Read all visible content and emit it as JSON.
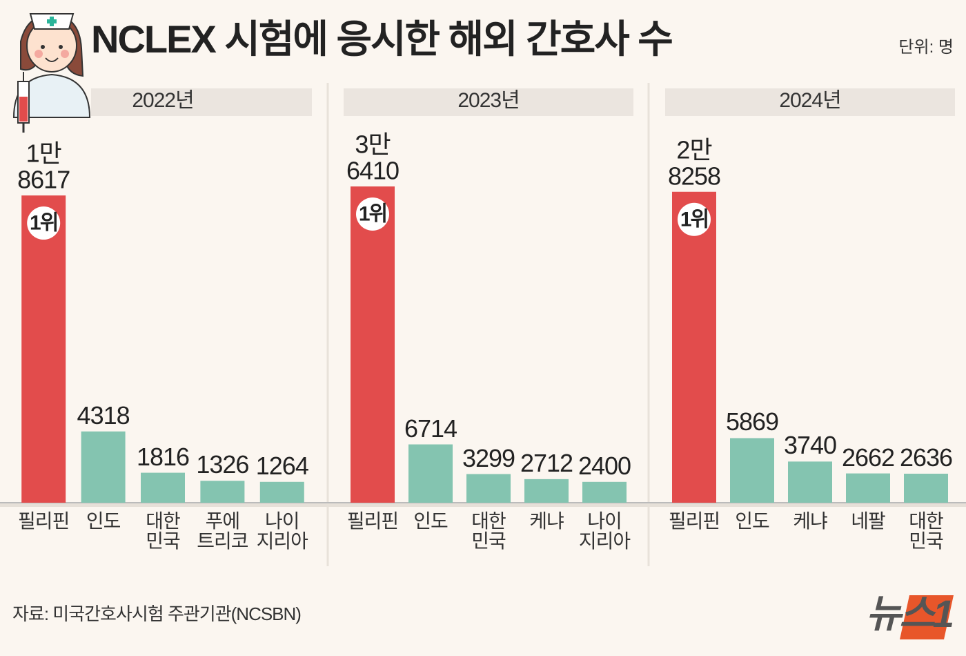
{
  "title": "NCLEX 시험에 응시한 해외 간호사 수",
  "unit": "단위: 명",
  "source": "자료: 미국간호사시험 주관기관(NCSBN)",
  "logo": "뉴스1",
  "chart_data": [
    {
      "type": "bar",
      "title": "2022년",
      "categories": [
        "필리핀",
        "인도",
        "대한\n민국",
        "푸에\n트리코",
        "나이\n지리아"
      ],
      "values": [
        18617,
        4318,
        1816,
        1326,
        1264
      ],
      "value_labels": [
        "1만\n8617",
        "4318",
        "1816",
        "1326",
        "1264"
      ],
      "colors": [
        "#e24c4c",
        "#84c4b0",
        "#84c4b0",
        "#84c4b0",
        "#84c4b0"
      ],
      "annotation": "1위",
      "ylim": [
        0,
        20000
      ]
    },
    {
      "type": "bar",
      "title": "2023년",
      "categories": [
        "필리핀",
        "인도",
        "대한\n민국",
        "케냐",
        "나이\n지리아"
      ],
      "values": [
        36410,
        6714,
        3299,
        2712,
        2400
      ],
      "value_labels": [
        "3만\n6410",
        "6714",
        "3299",
        "2712",
        "2400"
      ],
      "colors": [
        "#e24c4c",
        "#84c4b0",
        "#84c4b0",
        "#84c4b0",
        "#84c4b0"
      ],
      "annotation": "1위",
      "ylim": [
        0,
        38000
      ]
    },
    {
      "type": "bar",
      "title": "2024년",
      "categories": [
        "필리핀",
        "인도",
        "케냐",
        "네팔",
        "대한\n민국"
      ],
      "values": [
        28258,
        5869,
        3740,
        2662,
        2636
      ],
      "value_labels": [
        "2만\n8258",
        "5869",
        "3740",
        "2662",
        "2636"
      ],
      "colors": [
        "#e24c4c",
        "#84c4b0",
        "#84c4b0",
        "#84c4b0",
        "#84c4b0"
      ],
      "annotation": "1위",
      "ylim": [
        0,
        30000
      ]
    }
  ]
}
